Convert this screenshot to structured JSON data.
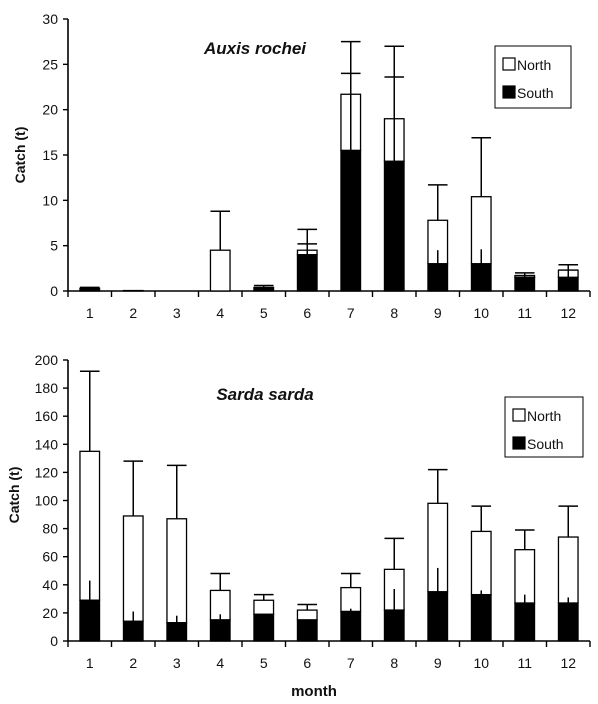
{
  "chart_data": [
    {
      "type": "bar",
      "stacked": true,
      "title": "Auxis rochei",
      "ylabel": "Catch (t)",
      "xlabel": "",
      "categories": [
        "1",
        "2",
        "3",
        "4",
        "5",
        "6",
        "7",
        "8",
        "9",
        "10",
        "11",
        "12"
      ],
      "yticks": [
        "0",
        "5",
        "10",
        "15",
        "20",
        "25",
        "30"
      ],
      "ylim": [
        0,
        30
      ],
      "legend": {
        "position": "top-right",
        "entries": [
          "North",
          "South"
        ]
      },
      "series": [
        {
          "name": "South",
          "color": "#000000",
          "values": [
            0.3,
            0.05,
            0,
            0,
            0.4,
            4.0,
            15.5,
            14.3,
            3.0,
            3.0,
            1.5,
            1.5
          ]
        },
        {
          "name": "North",
          "color": "#ffffff",
          "values": [
            0,
            0,
            0,
            4.5,
            0,
            0.5,
            6.2,
            4.7,
            4.8,
            7.4,
            0.2,
            0.8
          ]
        }
      ],
      "error_bars": {
        "South": [
          0,
          0,
          0,
          0,
          0,
          5.2,
          24.0,
          23.6,
          4.5,
          4.6,
          1.7,
          2.3
        ],
        "Total": [
          0.4,
          0,
          0,
          8.8,
          0.6,
          6.8,
          27.5,
          27.0,
          11.7,
          16.9,
          2.0,
          2.9
        ]
      }
    },
    {
      "type": "bar",
      "stacked": true,
      "title": "Sarda sarda",
      "ylabel": "Catch (t)",
      "xlabel": "month",
      "categories": [
        "1",
        "2",
        "3",
        "4",
        "5",
        "6",
        "7",
        "8",
        "9",
        "10",
        "11",
        "12"
      ],
      "yticks": [
        "0",
        "20",
        "40",
        "60",
        "80",
        "100",
        "120",
        "140",
        "160",
        "180",
        "200"
      ],
      "ylim": [
        0,
        200
      ],
      "legend": {
        "position": "top-right",
        "entries": [
          "North",
          "South"
        ]
      },
      "series": [
        {
          "name": "South",
          "color": "#000000",
          "values": [
            29,
            14,
            13,
            15,
            19,
            15,
            21,
            22,
            35,
            33,
            27,
            27
          ]
        },
        {
          "name": "North",
          "color": "#ffffff",
          "values": [
            106,
            75,
            74,
            21,
            10,
            7,
            17,
            29,
            63,
            45,
            38,
            47
          ]
        }
      ],
      "error_bars": {
        "South": [
          43,
          21,
          18,
          19,
          0,
          0,
          23,
          37,
          52,
          36,
          33,
          31
        ],
        "Total": [
          192,
          128,
          125,
          48,
          33,
          26,
          48,
          73,
          122,
          96,
          79,
          96
        ]
      }
    }
  ]
}
